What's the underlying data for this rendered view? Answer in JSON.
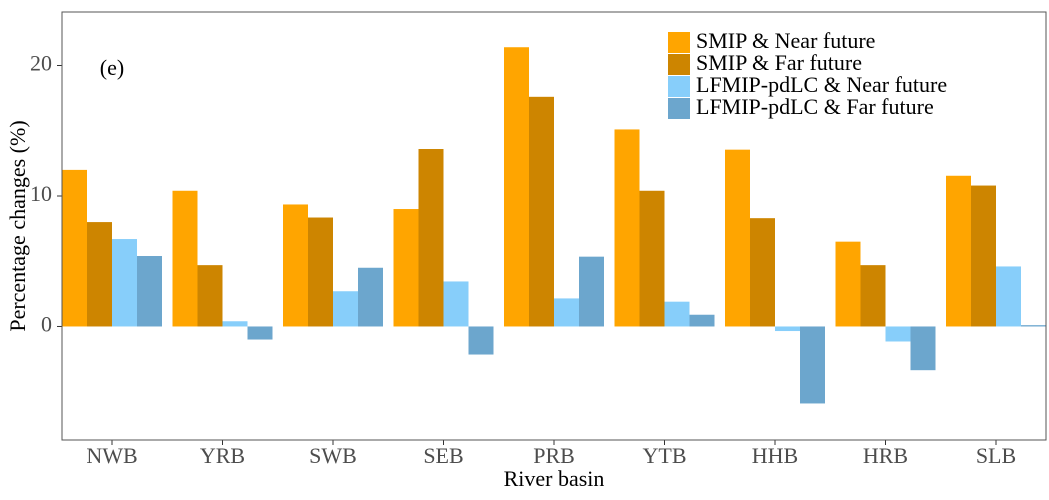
{
  "chart_data": {
    "type": "bar",
    "annotation": "(e)",
    "x_label": "River basin",
    "y_label": "Percentage changes (%)",
    "categories": [
      "NWB",
      "YRB",
      "SWB",
      "SEB",
      "PRB",
      "YTB",
      "HHB",
      "HRB",
      "SLB"
    ],
    "series": [
      {
        "name": "SMIP & Near future",
        "color": "#ffa500",
        "values": [
          12.0,
          10.4,
          9.35,
          9.0,
          21.4,
          15.1,
          13.55,
          6.5,
          11.55
        ]
      },
      {
        "name": "SMIP & Far future",
        "color": "#cd8500",
        "values": [
          8.0,
          4.7,
          8.35,
          13.6,
          17.6,
          10.4,
          8.3,
          4.7,
          10.8
        ]
      },
      {
        "name": "LFMIP-pdLC & Near future",
        "color": "#87cefa",
        "values": [
          6.7,
          0.4,
          2.7,
          3.45,
          2.15,
          1.9,
          -0.35,
          -1.15,
          4.6
        ]
      },
      {
        "name": "LFMIP-pdLC & Far future",
        "color": "#6ca6cd",
        "values": [
          5.4,
          -1.0,
          4.5,
          -2.15,
          5.35,
          0.9,
          -5.9,
          -3.35,
          0.1
        ]
      }
    ],
    "ylim": [
      -8.7,
      24.1
    ],
    "yticks": [
      0,
      10,
      20
    ],
    "legend": "top-right",
    "grid": false
  }
}
